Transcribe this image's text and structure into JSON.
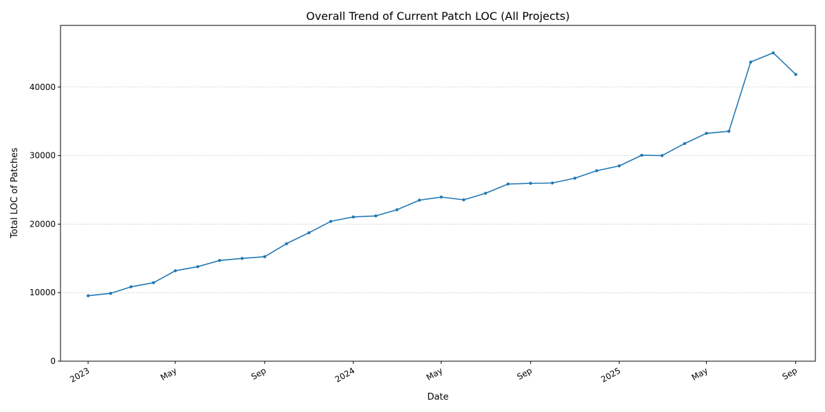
{
  "chart_data": {
    "type": "line",
    "title": "Overall Trend of Current Patch LOC (All Projects)",
    "xlabel": "Date",
    "ylabel": "Total LOC of Patches",
    "ylim": [
      0,
      49000
    ],
    "xlim": [
      "2022-11-24",
      "2025-09-28"
    ],
    "yticks": [
      0,
      10000,
      20000,
      30000,
      40000
    ],
    "yticklabels": [
      "0",
      "10000",
      "20000",
      "30000",
      "40000"
    ],
    "xticks": [
      "2023-01-01",
      "2023-05-01",
      "2023-09-01",
      "2024-01-01",
      "2024-05-01",
      "2024-09-01",
      "2025-01-01",
      "2025-05-01",
      "2025-09-01"
    ],
    "xticklabels": [
      "2023",
      "May",
      "Sep",
      "2024",
      "May",
      "Sep",
      "2025",
      "May",
      "Sep"
    ],
    "grid": "y-major-dashed",
    "line_color": "#1f77b4",
    "series": [
      {
        "x": [
          "2023-01-01",
          "2023-02-01",
          "2023-03-01",
          "2023-04-01",
          "2023-05-01",
          "2023-06-01",
          "2023-07-01",
          "2023-08-01",
          "2023-09-01",
          "2023-10-01",
          "2023-11-01",
          "2023-12-01",
          "2024-01-01",
          "2024-02-01",
          "2024-03-01",
          "2024-04-01",
          "2024-05-01",
          "2024-06-01",
          "2024-07-01",
          "2024-08-01",
          "2024-09-01",
          "2024-10-01",
          "2024-11-01",
          "2024-12-01",
          "2025-01-01",
          "2025-02-01",
          "2025-03-01",
          "2025-04-01",
          "2025-05-01",
          "2025-06-01",
          "2025-07-01",
          "2025-08-01",
          "2025-09-01"
        ],
        "values": [
          9550,
          9900,
          10850,
          11450,
          13200,
          13800,
          14700,
          15000,
          15250,
          17150,
          18750,
          20400,
          21050,
          21200,
          22100,
          23500,
          23950,
          23550,
          24500,
          25850,
          25950,
          26000,
          26700,
          27800,
          28500,
          30050,
          30000,
          31750,
          33250,
          33550,
          43650,
          45000,
          41850
        ]
      }
    ]
  }
}
